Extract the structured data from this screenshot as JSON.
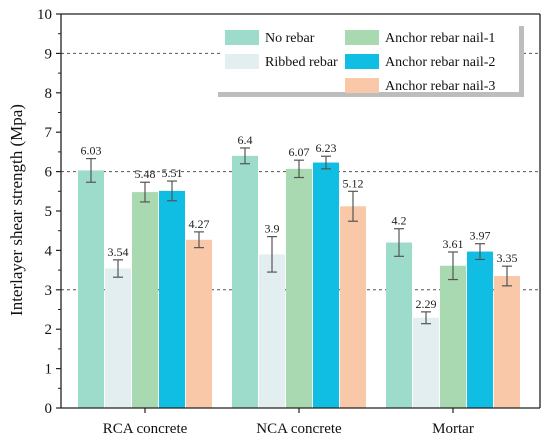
{
  "chart_data": {
    "type": "bar",
    "ylabel": "Interlayer shear strength (Mpa)",
    "xlabel": "",
    "ylim": [
      0,
      10
    ],
    "yticks": [
      0,
      1,
      2,
      3,
      4,
      5,
      6,
      7,
      8,
      9,
      10
    ],
    "grid": "dashed horizontal at 3, 6, 9",
    "legend_position": "top-right",
    "categories": [
      "RCA concrete",
      "NCA concrete",
      "Mortar"
    ],
    "series": [
      {
        "name": "No rebar",
        "color": "#9ddccb",
        "values": [
          6.03,
          6.4,
          4.2
        ],
        "labels": [
          "6.03",
          "6.4",
          "4.2"
        ],
        "errors": [
          0.3,
          0.2,
          0.35
        ]
      },
      {
        "name": "Ribbed rebar",
        "color": "#e3eef0",
        "values": [
          3.54,
          3.9,
          2.29
        ],
        "labels": [
          "3.54",
          "3.9",
          "2.29"
        ],
        "errors": [
          0.22,
          0.45,
          0.15
        ]
      },
      {
        "name": "Anchor rebar nail-1",
        "color": "#a8d9b0",
        "values": [
          5.48,
          6.07,
          3.61
        ],
        "labels": [
          "5.48",
          "6.07",
          "3.61"
        ],
        "errors": [
          0.25,
          0.22,
          0.35
        ]
      },
      {
        "name": "Anchor rebar nail-2",
        "color": "#10bde3",
        "values": [
          5.51,
          6.23,
          3.97
        ],
        "labels": [
          "5.51",
          "6.23",
          "3.97"
        ],
        "errors": [
          0.25,
          0.16,
          0.2
        ]
      },
      {
        "name": "Anchor rebar nail-3",
        "color": "#f8c8a9",
        "values": [
          4.27,
          5.12,
          3.35
        ],
        "labels": [
          "4.27",
          "5.12",
          "3.35"
        ],
        "errors": [
          0.2,
          0.38,
          0.25
        ]
      }
    ]
  }
}
